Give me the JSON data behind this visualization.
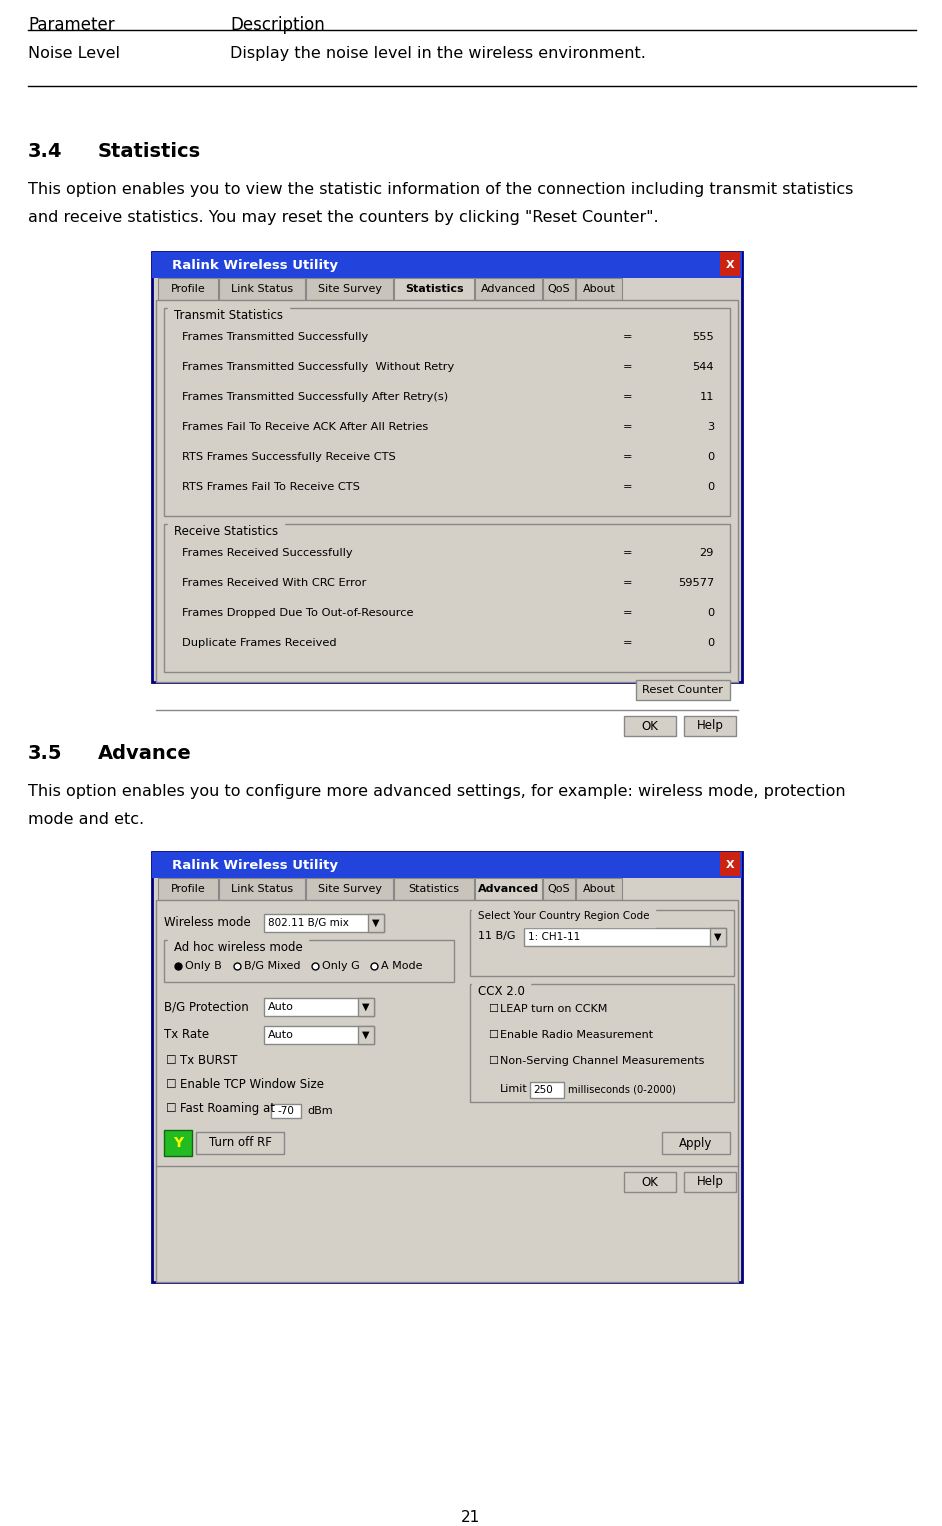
{
  "bg_color": "#ffffff",
  "page_number": "21",
  "table_header": [
    "Parameter",
    "Description"
  ],
  "table_row": [
    "Noise Level",
    "Display the noise level in the wireless environment."
  ],
  "section_34_number": "3.4",
  "section_34_name": "Statistics",
  "section_34_body1": "This option enables you to view the statistic information of the connection including transmit statistics",
  "section_34_body2": "and receive statistics. You may reset the counters by clicking \"Reset Counter\".",
  "section_35_number": "3.5",
  "section_35_name": "Advance",
  "section_35_body1": "This option enables you to configure more advanced settings, for example: wireless mode, protection",
  "section_35_body2": "mode and etc.",
  "win_title": "Ralink Wireless Utility",
  "win_bg": "#d4d0c8",
  "win_titlebar": "#2244cc",
  "win_border": "#000080",
  "tabs": [
    "Profile",
    "Link Status",
    "Site Survey",
    "Statistics",
    "Advanced",
    "QoS",
    "About"
  ],
  "active_tab_34": "Statistics",
  "active_tab_35": "Advanced",
  "transmit_group": "Transmit Statistics",
  "transmit_rows": [
    [
      "Frames Transmitted Successfully",
      "=",
      "555"
    ],
    [
      "Frames Transmitted Successfully  Without Retry",
      "=",
      "544"
    ],
    [
      "Frames Transmitted Successfully After Retry(s)",
      "=",
      "11"
    ],
    [
      "Frames Fail To Receive ACK After All Retries",
      "=",
      "3"
    ],
    [
      "RTS Frames Successfully Receive CTS",
      "=",
      "0"
    ],
    [
      "RTS Frames Fail To Receive CTS",
      "=",
      "0"
    ]
  ],
  "receive_group": "Receive Statistics",
  "receive_rows": [
    [
      "Frames Received Successfully",
      "=",
      "29"
    ],
    [
      "Frames Received With CRC Error",
      "=",
      "59577"
    ],
    [
      "Frames Dropped Due To Out-of-Resource",
      "=",
      "0"
    ],
    [
      "Duplicate Frames Received",
      "=",
      "0"
    ]
  ],
  "adv_radio": [
    "Only B",
    "B/G Mixed",
    "Only G",
    "A Mode"
  ],
  "adv_checks": [
    "Tx BURST",
    "Enable TCP Window Size",
    "Fast Roaming at"
  ],
  "adv_ccx": [
    "LEAP turn on CCKM",
    "Enable Radio Measurement",
    "Non-Serving Channel Measurements"
  ],
  "country_region": "Select Your Country Region Code",
  "fast_roam_val": "-70",
  "limit_val": "250",
  "limit_label": "milliseconds (0-2000)"
}
